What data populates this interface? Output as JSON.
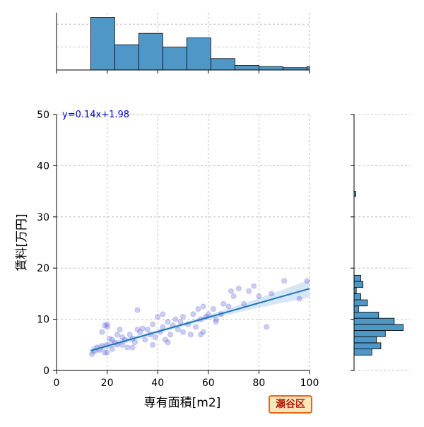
{
  "chart_data": {
    "type": "scatter",
    "subtype": "jointplot",
    "xlabel": "専有面積[m2]",
    "ylabel": "賃料[万円]",
    "xlim": [
      0,
      100
    ],
    "ylim": [
      0,
      50
    ],
    "x_ticks": [
      0,
      20,
      40,
      60,
      80,
      100
    ],
    "y_ticks": [
      0,
      10,
      20,
      30,
      40,
      50
    ],
    "grid": true,
    "regression": {
      "slope": 0.14,
      "intercept": 1.98,
      "label": "y=0.14x+1.98",
      "x_range": [
        13.5,
        100
      ]
    },
    "scatter": {
      "x": [
        14,
        15,
        16,
        17,
        18,
        19,
        19,
        20,
        20,
        21,
        22,
        22,
        23,
        24,
        25,
        26,
        27,
        28,
        29,
        30,
        31,
        32,
        33,
        34,
        35,
        36,
        37,
        38,
        39,
        40,
        41,
        42,
        43,
        44,
        45,
        46,
        47,
        48,
        49,
        50,
        52,
        53,
        54,
        55,
        56,
        57,
        58,
        59,
        60,
        62,
        63,
        65,
        66,
        68,
        70,
        72,
        74,
        76,
        78,
        80,
        83,
        85,
        90,
        96,
        99,
        18,
        20,
        20,
        26,
        30,
        24,
        38,
        42,
        50,
        58,
        32,
        44,
        57,
        63,
        69
      ],
      "y": [
        3.2,
        3.8,
        4.5,
        4.0,
        4.8,
        3.5,
        8.8,
        5.0,
        8.5,
        6.2,
        4.2,
        6.0,
        5.5,
        5.0,
        8.0,
        6.5,
        6.0,
        4.5,
        7.0,
        6.2,
        5.5,
        11.8,
        7.5,
        8.2,
        6.0,
        8.0,
        7.0,
        9.0,
        6.5,
        10.5,
        7.5,
        8.5,
        6.0,
        9.5,
        7.0,
        8.8,
        10.0,
        8.0,
        9.5,
        10.5,
        9.0,
        7.0,
        11.0,
        8.5,
        12.0,
        10.0,
        7.5,
        10.5,
        11.0,
        12.0,
        9.5,
        11.0,
        13.0,
        12.5,
        14.5,
        16.0,
        13.0,
        15.5,
        16.5,
        14.5,
        8.5,
        15.0,
        17.5,
        14.0,
        17.5,
        7.5,
        3.5,
        9.0,
        5.0,
        4.5,
        7.0,
        5.0,
        11.0,
        7.5,
        12.5,
        8.0,
        5.5,
        7.0,
        10.0,
        15.5
      ]
    },
    "top_histogram": {
      "bin_edges": [
        13.5,
        23,
        32.5,
        42,
        51.5,
        61,
        70.5,
        80,
        89.5,
        99,
        100
      ],
      "counts": [
        23,
        11,
        16,
        10,
        14,
        5,
        2,
        1.5,
        1,
        1.5
      ]
    },
    "right_histogram": {
      "bin_edges": [
        3,
        4.2,
        5.4,
        6.6,
        7.8,
        9,
        10.2,
        11.4,
        12.6,
        13.8,
        15,
        16.2,
        17.4,
        18.6
      ],
      "counts": [
        8,
        12,
        10,
        14,
        22,
        18,
        11,
        2,
        6,
        3,
        1,
        4,
        3
      ]
    },
    "right_hist_outlier": {
      "y": 34.5,
      "count": 0.5
    },
    "scatter_color": "#5a5adc",
    "hist_color": "#4f97c6",
    "line_color": "#1f77b4",
    "band_color": "#a6c8e8",
    "annotation_color": "#0000cc"
  },
  "badge": {
    "text": "瀬谷区",
    "border": "#e8641e",
    "fill": "#fde7b8",
    "text_color": "#b01e0e"
  }
}
